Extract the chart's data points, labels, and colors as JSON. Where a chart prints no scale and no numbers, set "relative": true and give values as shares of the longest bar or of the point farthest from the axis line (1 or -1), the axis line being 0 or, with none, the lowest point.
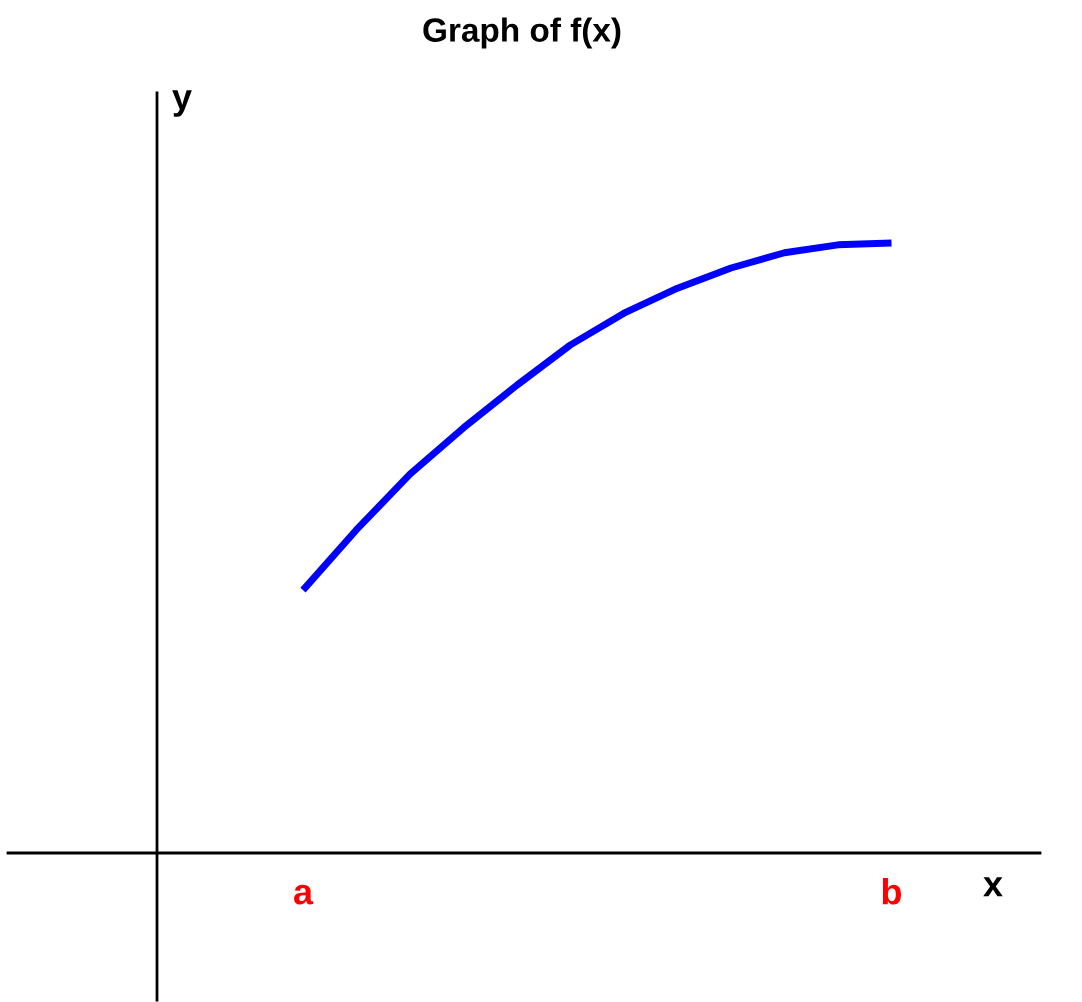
{
  "chart_data": {
    "type": "line",
    "title": "Graph of f(x)",
    "xlabel": "x",
    "ylabel": "y",
    "relative": true,
    "categories": [
      "a",
      null,
      null,
      null,
      null,
      null,
      null,
      null,
      null,
      null,
      null,
      "b"
    ],
    "series": [
      {
        "color": "#0000ff",
        "values": [
          0.431,
          0.53,
          0.621,
          0.697,
          0.767,
          0.833,
          0.885,
          0.926,
          0.959,
          0.984,
          0.997,
          1
        ]
      }
    ],
    "grid": false,
    "legend": false
  }
}
